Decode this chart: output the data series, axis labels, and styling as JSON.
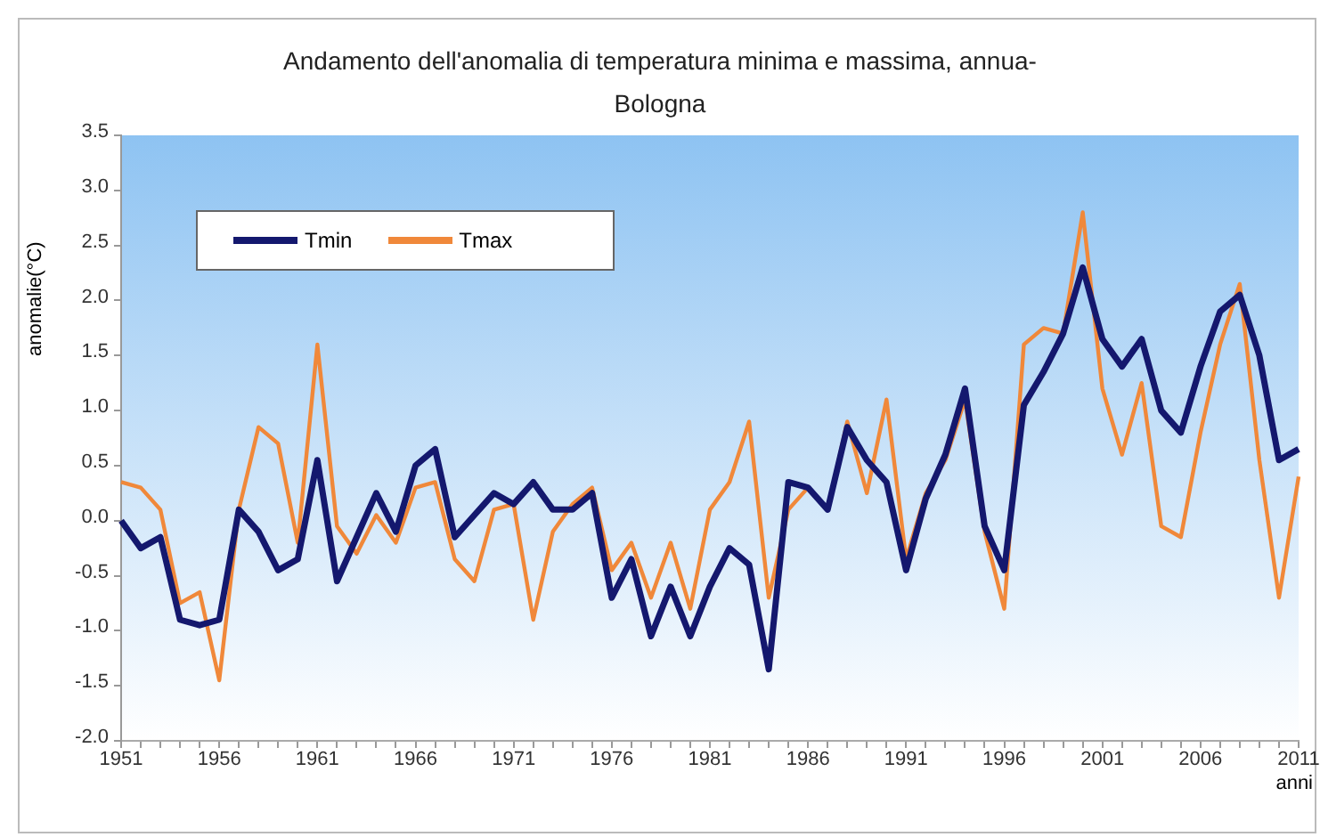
{
  "chart_data": {
    "type": "line",
    "title": "Andamento dell'anomalia di temperatura minima e massima, annua-Bologna",
    "xlabel": "anni",
    "ylabel": "anomalie(°C)",
    "categories": [
      "1951",
      null,
      null,
      null,
      null,
      "1956",
      null,
      null,
      null,
      null,
      "1961",
      null,
      null,
      null,
      null,
      "1966",
      null,
      null,
      null,
      null,
      "1971",
      null,
      null,
      null,
      null,
      "1976",
      null,
      null,
      null,
      null,
      "1981",
      null,
      null,
      null,
      null,
      "1986",
      null,
      null,
      null,
      null,
      "1991",
      null,
      null,
      null,
      null,
      "1996",
      null,
      null,
      null,
      null,
      "2001",
      null,
      null,
      null,
      null,
      "2006",
      null,
      null,
      null,
      null,
      "2011"
    ],
    "series": [
      {
        "name": "Tmin",
        "color": "#14186e",
        "values": [
          0.0,
          -0.25,
          -0.15,
          -0.9,
          -0.95,
          -0.9,
          0.1,
          -0.1,
          -0.45,
          -0.35,
          0.55,
          -0.55,
          -0.15,
          0.25,
          -0.1,
          0.5,
          0.65,
          -0.15,
          0.05,
          0.25,
          0.15,
          0.35,
          0.1,
          0.1,
          0.25,
          -0.7,
          -0.35,
          -1.05,
          -0.6,
          -1.05,
          -0.6,
          -0.25,
          -0.4,
          -1.35,
          0.35,
          0.3,
          0.1,
          0.85,
          0.55,
          0.35,
          -0.45,
          0.2,
          0.6,
          1.2,
          -0.05,
          -0.45,
          1.05,
          1.35,
          1.7,
          2.3,
          1.65,
          1.4,
          1.65,
          1.0,
          0.8,
          1.4,
          1.9,
          2.05,
          1.5,
          0.55,
          0.65
        ]
      },
      {
        "name": "Tmax",
        "color": "#f0883a",
        "values": [
          0.35,
          0.3,
          0.1,
          -0.75,
          -0.65,
          -1.45,
          0.1,
          0.85,
          0.7,
          -0.2,
          1.6,
          -0.05,
          -0.3,
          0.05,
          -0.2,
          0.3,
          0.35,
          -0.35,
          -0.55,
          0.1,
          0.15,
          -0.9,
          -0.1,
          0.15,
          0.3,
          -0.45,
          -0.2,
          -0.7,
          -0.2,
          -0.8,
          0.1,
          0.35,
          0.9,
          -0.7,
          0.1,
          0.3,
          0.1,
          0.9,
          0.25,
          1.1,
          -0.35,
          0.25,
          0.55,
          1.1,
          -0.1,
          -0.8,
          1.6,
          1.75,
          1.7,
          2.8,
          1.2,
          0.6,
          1.25,
          -0.05,
          -0.15,
          0.8,
          1.6,
          2.15,
          0.55,
          -0.7,
          0.4
        ]
      }
    ],
    "ylim": [
      -2.0,
      3.5
    ],
    "yticks": [
      {
        "value": -2,
        "label": "-2.0"
      },
      {
        "value": -1.5,
        "label": "-1.5"
      },
      {
        "value": -1,
        "label": "-1.0"
      },
      {
        "value": -0.5,
        "label": "-0.5"
      },
      {
        "value": 0,
        "label": "0.0"
      },
      {
        "value": 0.5,
        "label": "0.5"
      },
      {
        "value": 1,
        "label": "1.0"
      },
      {
        "value": 1.5,
        "label": "1.5"
      },
      {
        "value": 2,
        "label": "2.0"
      },
      {
        "value": 2.5,
        "label": "2.5"
      },
      {
        "value": 3,
        "label": "3.0"
      },
      {
        "value": 3.5,
        "label": "3.5"
      }
    ],
    "grid": false,
    "legend": "top left",
    "marker": "none",
    "line_style": "solid"
  }
}
